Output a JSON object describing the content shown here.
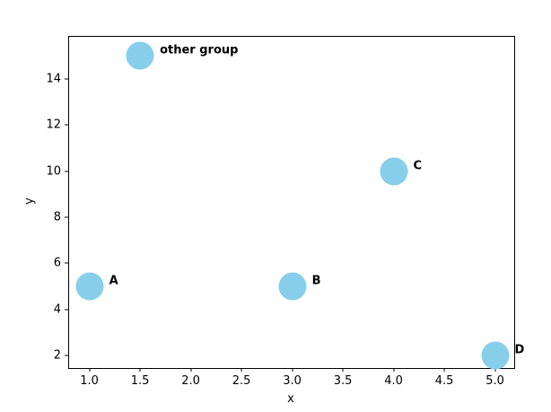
{
  "chart_data": {
    "type": "scatter",
    "title": "",
    "xlabel": "x",
    "ylabel": "y",
    "xlim": [
      0.8,
      5.19
    ],
    "ylim": [
      1.45,
      15.83
    ],
    "x_ticks": [
      {
        "value": 1.0,
        "label": "1.0"
      },
      {
        "value": 1.5,
        "label": "1.5"
      },
      {
        "value": 2.0,
        "label": "2.0"
      },
      {
        "value": 2.5,
        "label": "2.5"
      },
      {
        "value": 3.0,
        "label": "3.0"
      },
      {
        "value": 3.5,
        "label": "3.5"
      },
      {
        "value": 4.0,
        "label": "4.0"
      },
      {
        "value": 4.5,
        "label": "4.5"
      },
      {
        "value": 5.0,
        "label": "5.0"
      }
    ],
    "y_ticks": [
      {
        "value": 2,
        "label": "2"
      },
      {
        "value": 4,
        "label": "4"
      },
      {
        "value": 6,
        "label": "6"
      },
      {
        "value": 8,
        "label": "8"
      },
      {
        "value": 10,
        "label": "10"
      },
      {
        "value": 12,
        "label": "12"
      },
      {
        "value": 14,
        "label": "14"
      }
    ],
    "points": [
      {
        "x": 1.0,
        "y": 5,
        "label": "A"
      },
      {
        "x": 3.0,
        "y": 5,
        "label": "B"
      },
      {
        "x": 4.0,
        "y": 10,
        "label": "C"
      },
      {
        "x": 5.0,
        "y": 2,
        "label": "D"
      },
      {
        "x": 1.5,
        "y": 15,
        "label": "other group"
      }
    ],
    "grid": false,
    "legend": "none",
    "marker_color": "#87CEEB",
    "marker_diameter_px": 31,
    "label_color": "#000000",
    "axis_color": "#000000",
    "background_color": "#ffffff"
  }
}
